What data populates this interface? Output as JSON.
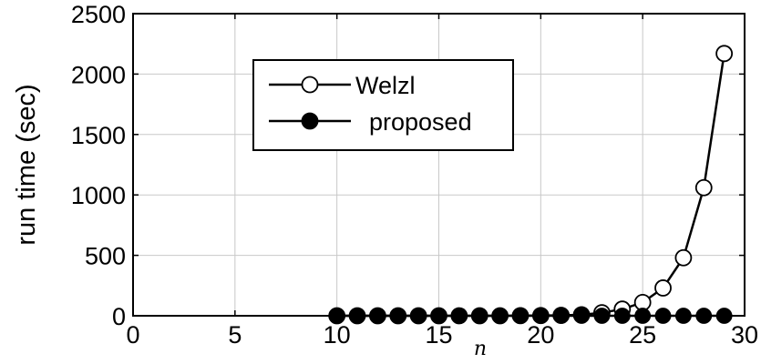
{
  "chart_data": {
    "type": "line",
    "title": "",
    "xlabel": "n",
    "ylabel": "run time (sec)",
    "xlim": [
      0,
      30
    ],
    "ylim": [
      0,
      2500
    ],
    "xticks": [
      0,
      5,
      10,
      15,
      20,
      25,
      30
    ],
    "yticks": [
      0,
      500,
      1000,
      1500,
      2000,
      2500
    ],
    "grid": true,
    "legend_position": "upper-left",
    "series": [
      {
        "name": "Welzl",
        "marker": "open-circle",
        "x": [
          10,
          11,
          12,
          13,
          14,
          15,
          16,
          17,
          18,
          19,
          20,
          21,
          22,
          23,
          24,
          25,
          26,
          27,
          28,
          29
        ],
        "y": [
          0,
          0,
          0,
          0,
          0,
          0,
          0,
          0,
          0,
          1,
          2,
          4,
          8,
          25,
          55,
          110,
          230,
          480,
          1060,
          2170
        ]
      },
      {
        "name": "proposed",
        "marker": "filled-circle",
        "x": [
          10,
          11,
          12,
          13,
          14,
          15,
          16,
          17,
          18,
          19,
          20,
          21,
          22,
          23,
          24,
          25,
          26,
          27,
          28,
          29
        ],
        "y": [
          0,
          0,
          0,
          0,
          0,
          0,
          0,
          0,
          0,
          0,
          0,
          0,
          0,
          0,
          0,
          0,
          0,
          0,
          0,
          0
        ]
      }
    ]
  }
}
